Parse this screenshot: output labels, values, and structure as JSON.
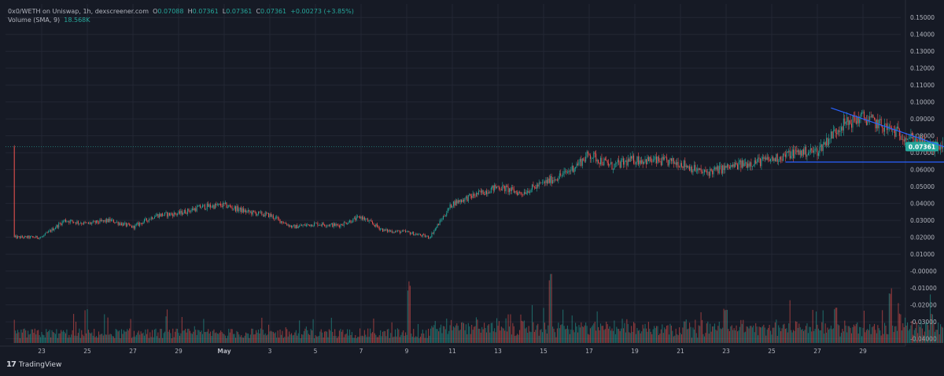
{
  "legend": {
    "symbol": "0x0/WETH on Uniswap, 1h, dexscreener.com",
    "o_label": "O",
    "o_value": "0.07088",
    "h_label": "H",
    "h_value": "0.07361",
    "l_label": "L",
    "l_value": "0.07361",
    "c_label": "C",
    "c_value": "0.07361",
    "change": "+0.00273 (+3.85%)",
    "volume_label": "Volume (SMA, 9)",
    "volume_value": "18.568K"
  },
  "brand": {
    "logo": "17",
    "name": "TradingView"
  },
  "colors": {
    "background": "#161a25",
    "grid": "#232734",
    "up": "#26a69a",
    "down": "#ef5350",
    "price_tag": "#26a69a",
    "trendline": "#2962ff",
    "axis_text": "#b2b5be"
  },
  "chart_data": {
    "type": "candlestick",
    "title": "0x0/WETH on Uniswap, 1h, dexscreener.com",
    "x_tick_labels": [
      "23",
      "25",
      "27",
      "29",
      "May",
      "3",
      "5",
      "7",
      "9",
      "11",
      "13",
      "15",
      "17",
      "19",
      "21",
      "23",
      "25",
      "27",
      "29"
    ],
    "y_tick_labels": [
      "0.15000",
      "0.14000",
      "0.13000",
      "0.12000",
      "0.11000",
      "0.10000",
      "0.09000",
      "0.08000",
      "0.07000",
      "0.06000",
      "0.05000",
      "0.04000",
      "0.03000",
      "0.02000",
      "0.01000",
      "-0.00000",
      "-0.01000",
      "-0.02000",
      "-0.03000",
      "-0.04000"
    ],
    "y_ticks": [
      0.15,
      0.14,
      0.13,
      0.12,
      0.11,
      0.1,
      0.09,
      0.08,
      0.07,
      0.06,
      0.05,
      0.04,
      0.03,
      0.02,
      0.01,
      0.0,
      -0.01,
      -0.02,
      -0.03,
      -0.04
    ],
    "ylim": [
      -0.0425,
      0.158
    ],
    "last_price": 0.07361,
    "last_price_label": "0.07361",
    "price_path": [
      [
        0,
        0.02
      ],
      [
        1,
        0.03
      ],
      [
        2,
        0.028
      ],
      [
        3,
        0.03
      ],
      [
        4,
        0.026
      ],
      [
        5,
        0.033
      ],
      [
        6,
        0.034
      ],
      [
        7,
        0.038
      ],
      [
        8,
        0.039
      ],
      [
        9,
        0.035
      ],
      [
        10,
        0.033
      ],
      [
        11,
        0.026
      ],
      [
        12,
        0.028
      ],
      [
        13,
        0.027
      ],
      [
        14,
        0.032
      ],
      [
        15,
        0.024
      ],
      [
        16,
        0.023
      ],
      [
        17,
        0.02
      ],
      [
        18,
        0.04
      ],
      [
        19,
        0.045
      ],
      [
        20,
        0.05
      ],
      [
        21,
        0.046
      ],
      [
        22,
        0.052
      ],
      [
        23,
        0.058
      ],
      [
        24,
        0.069
      ],
      [
        25,
        0.062
      ],
      [
        26,
        0.066
      ],
      [
        27,
        0.065
      ],
      [
        28,
        0.064
      ],
      [
        29,
        0.058
      ],
      [
        30,
        0.061
      ],
      [
        31,
        0.064
      ],
      [
        32,
        0.066
      ],
      [
        33,
        0.07
      ],
      [
        34,
        0.071
      ],
      [
        35,
        0.086
      ],
      [
        36,
        0.091
      ],
      [
        37,
        0.085
      ],
      [
        38,
        0.079
      ],
      [
        39,
        0.073
      ],
      [
        39.5,
        0.07361
      ]
    ],
    "volume_peaks": [
      [
        16.1,
        0.62
      ],
      [
        22.3,
        0.7
      ],
      [
        30.0,
        0.36
      ],
      [
        37.2,
        0.55
      ],
      [
        34.8,
        0.4
      ],
      [
        37.6,
        0.3
      ],
      [
        39.0,
        0.3
      ]
    ],
    "trendlines": [
      {
        "from": [
          34.6,
          0.0965
        ],
        "to": [
          40.0,
          0.0715
        ]
      },
      {
        "from": [
          32.6,
          0.0645
        ],
        "to": [
          39.8,
          0.0645
        ]
      }
    ]
  }
}
